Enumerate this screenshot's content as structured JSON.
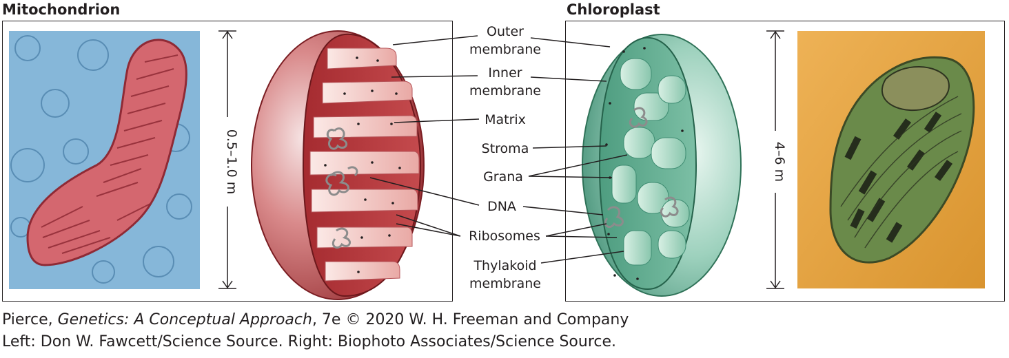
{
  "titles": {
    "left": "Mitochondrion",
    "right": "Chloroplast"
  },
  "dimensions": {
    "mitochondrion": "0.5–1.0 m",
    "chloroplast": "4–6 m"
  },
  "labels": {
    "outer_membrane": [
      "Outer",
      "membrane"
    ],
    "inner_membrane": [
      "Inner",
      "membrane"
    ],
    "matrix": "Matrix",
    "stroma": "Stroma",
    "grana": "Grana",
    "dna": "DNA",
    "ribosomes": "Ribosomes",
    "thylakoid_membrane": [
      "Thylakoid",
      "membrane"
    ]
  },
  "credits": {
    "line1_prefix": "Pierce, ",
    "line1_italic": "Genetics: A Conceptual Approach",
    "line1_suffix": ", 7e © 2020 W. H. Freeman and Company",
    "line2": "Left: Don W. Fawcett/Science Source. Right: Biophoto Associates/Science Source."
  },
  "colors": {
    "micrograph_blue": "#7fb2d6",
    "mito_red": "#c4474a",
    "chloro_green": "#7fc0a8",
    "micrograph_gold": "#e8a646"
  }
}
